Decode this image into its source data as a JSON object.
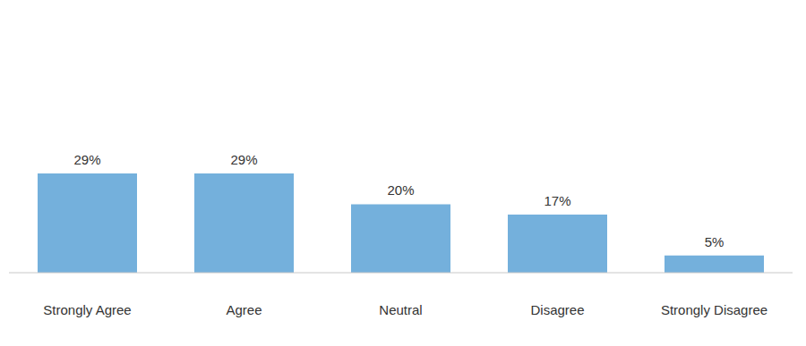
{
  "chart_data": {
    "type": "bar",
    "categories": [
      "Strongly Agree",
      "Agree",
      "Neutral",
      "Disagree",
      "Strongly Disagree"
    ],
    "values": [
      29,
      29,
      20,
      17,
      5
    ],
    "value_labels": [
      "29%",
      "29%",
      "20%",
      "17%",
      "5%"
    ],
    "color": "#74b0dc",
    "data_labels": true,
    "tick_labels": "x"
  }
}
